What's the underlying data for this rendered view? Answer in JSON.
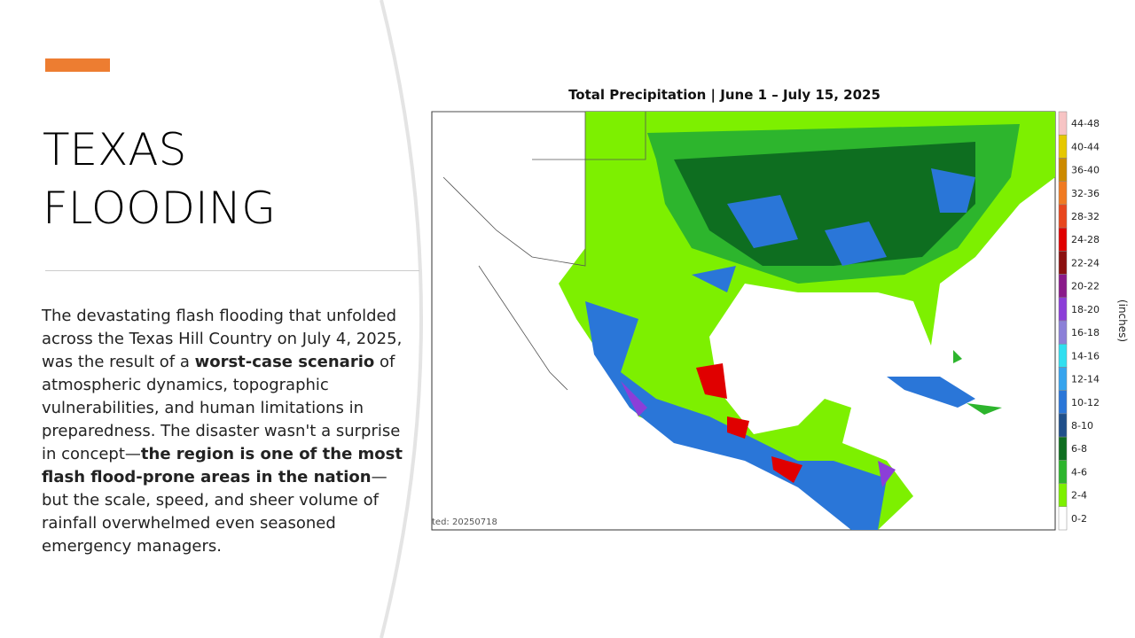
{
  "slide": {
    "title_lines": [
      "TEXAS",
      "FLOODING"
    ],
    "paragraph": [
      {
        "text": "The devastating flash flooding that unfolded across the Texas Hill Country on July 4, 2025, was the result of a ",
        "bold": false
      },
      {
        "text": "worst-case scenario",
        "bold": true
      },
      {
        "text": " of atmospheric dynamics, topographic vulnerabilities, and human limitations in preparedness. The disaster wasn't a surprise in concept—",
        "bold": false
      },
      {
        "text": "the region is one of the most flash flood-prone areas in the nation",
        "bold": true
      },
      {
        "text": "—but the scale, speed, and sheer volume of rainfall overwhelmed even seasoned emergency managers.",
        "bold": false
      }
    ]
  },
  "map": {
    "title": "Total Precipitation | June 1 – July 15, 2025",
    "stamp": "ted: 20250718",
    "legend": {
      "title": "(inches)",
      "items": [
        {
          "label": "44-48",
          "color": "#f7c4c4"
        },
        {
          "label": "40-44",
          "color": "#e6c800"
        },
        {
          "label": "36-40",
          "color": "#cc8a00"
        },
        {
          "label": "32-36",
          "color": "#f07a22"
        },
        {
          "label": "28-32",
          "color": "#e8461e"
        },
        {
          "label": "24-28",
          "color": "#e00000"
        },
        {
          "label": "22-24",
          "color": "#8b1010"
        },
        {
          "label": "20-22",
          "color": "#8a1a8a"
        },
        {
          "label": "18-20",
          "color": "#8c3ed8"
        },
        {
          "label": "16-18",
          "color": "#8c80d8"
        },
        {
          "label": "14-16",
          "color": "#30dff0"
        },
        {
          "label": "12-14",
          "color": "#36a4ee"
        },
        {
          "label": "10-12",
          "color": "#2a76d8"
        },
        {
          "label": "8-10",
          "color": "#1f4f8a"
        },
        {
          "label": "6-8",
          "color": "#0e6e20"
        },
        {
          "label": "4-6",
          "color": "#2db52d"
        },
        {
          "label": "2-4",
          "color": "#7df000"
        },
        {
          "label": "0-2",
          "color": "#ffffff"
        }
      ]
    }
  }
}
